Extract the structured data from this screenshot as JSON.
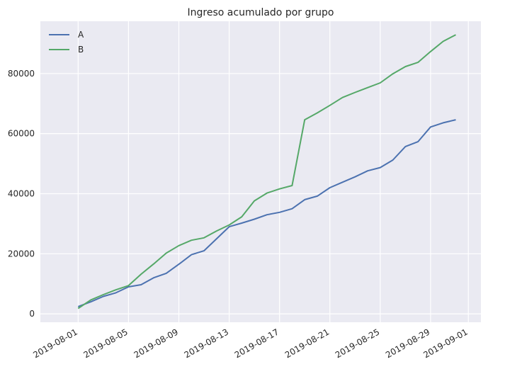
{
  "chart_data": {
    "type": "line",
    "title": "Ingreso acumulado por grupo",
    "xlabel": "",
    "ylabel": "",
    "x": [
      "2019-08-01",
      "2019-08-02",
      "2019-08-03",
      "2019-08-04",
      "2019-08-05",
      "2019-08-06",
      "2019-08-07",
      "2019-08-08",
      "2019-08-09",
      "2019-08-10",
      "2019-08-11",
      "2019-08-12",
      "2019-08-13",
      "2019-08-14",
      "2019-08-15",
      "2019-08-16",
      "2019-08-17",
      "2019-08-18",
      "2019-08-19",
      "2019-08-20",
      "2019-08-21",
      "2019-08-22",
      "2019-08-23",
      "2019-08-24",
      "2019-08-25",
      "2019-08-26",
      "2019-08-27",
      "2019-08-28",
      "2019-08-29",
      "2019-08-30",
      "2019-08-31"
    ],
    "series": [
      {
        "name": "A",
        "color": "#4c72b0",
        "values": [
          2400,
          4000,
          5800,
          7000,
          9000,
          9700,
          12000,
          13500,
          16500,
          19700,
          21000,
          25000,
          29000,
          30200,
          31500,
          33000,
          33800,
          35000,
          38000,
          39200,
          42000,
          43800,
          45600,
          47600,
          48700,
          51200,
          55700,
          57300,
          62200,
          63600,
          64600
        ]
      },
      {
        "name": "B",
        "color": "#55a868",
        "values": [
          1800,
          4600,
          6400,
          8000,
          9400,
          13200,
          16600,
          20200,
          22700,
          24500,
          25300,
          27600,
          29600,
          32300,
          37600,
          40200,
          41600,
          42700,
          64600,
          66900,
          69400,
          72000,
          73700,
          75300,
          76900,
          79900,
          82300,
          83700,
          87300,
          90700,
          92900
        ]
      }
    ],
    "x_ticks": [
      "2019-08-01",
      "2019-08-05",
      "2019-08-09",
      "2019-08-13",
      "2019-08-17",
      "2019-08-21",
      "2019-08-25",
      "2019-08-29",
      "2019-09-01"
    ],
    "y_ticks": [
      0,
      20000,
      40000,
      60000,
      80000
    ],
    "xlim": [
      "2019-07-29",
      "2019-09-02"
    ],
    "ylim": [
      -2800,
      97400
    ],
    "grid": true,
    "legend": "top-left",
    "background": "#eaeaf2"
  }
}
